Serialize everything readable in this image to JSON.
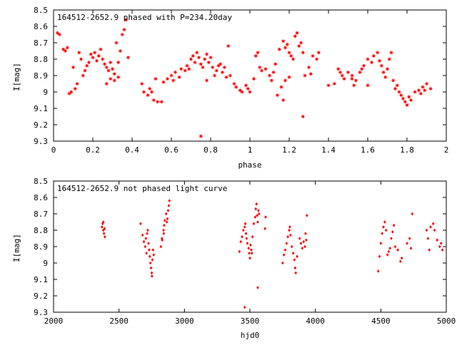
{
  "chart_data": [
    {
      "type": "scatter",
      "title": "164512-2652.9 phased with P=234.20day",
      "xlabel": "phase",
      "ylabel": "I[mag]",
      "xlim": [
        0,
        2
      ],
      "ylim": [
        8.5,
        9.3
      ],
      "y_inverted": true,
      "x_ticks": [
        "0",
        "0.2",
        "0.4",
        "0.6",
        "0.8",
        "1",
        "1.2",
        "1.4",
        "1.6",
        "1.8",
        "2"
      ],
      "y_ticks": [
        "8.5",
        "8.6",
        "8.7",
        "8.8",
        "8.9",
        "9",
        "9.1",
        "9.2",
        "9.3"
      ],
      "marker": "star",
      "color": "#ff0000",
      "points": [
        [
          0.02,
          8.64
        ],
        [
          0.03,
          8.65
        ],
        [
          0.05,
          8.74
        ],
        [
          0.06,
          8.75
        ],
        [
          0.07,
          8.73
        ],
        [
          0.08,
          9.01
        ],
        [
          0.09,
          9.0
        ],
        [
          0.1,
          8.85
        ],
        [
          0.11,
          8.98
        ],
        [
          0.12,
          8.95
        ],
        [
          0.13,
          8.76
        ],
        [
          0.14,
          8.8
        ],
        [
          0.15,
          8.9
        ],
        [
          0.16,
          8.87
        ],
        [
          0.17,
          8.84
        ],
        [
          0.18,
          8.82
        ],
        [
          0.19,
          8.77
        ],
        [
          0.2,
          8.79
        ],
        [
          0.21,
          8.76
        ],
        [
          0.22,
          8.81
        ],
        [
          0.23,
          8.78
        ],
        [
          0.24,
          8.74
        ],
        [
          0.25,
          8.8
        ],
        [
          0.26,
          8.83
        ],
        [
          0.27,
          8.85
        ],
        [
          0.28,
          8.87
        ],
        [
          0.29,
          8.82
        ],
        [
          0.3,
          8.86
        ],
        [
          0.31,
          8.89
        ],
        [
          0.32,
          8.7
        ],
        [
          0.33,
          8.82
        ],
        [
          0.34,
          8.75
        ],
        [
          0.35,
          8.65
        ],
        [
          0.36,
          8.62
        ],
        [
          0.37,
          8.56
        ],
        [
          0.38,
          8.79
        ],
        [
          0.29,
          8.92
        ],
        [
          0.31,
          8.93
        ],
        [
          0.27,
          8.95
        ],
        [
          0.33,
          8.91
        ],
        [
          0.45,
          8.95
        ],
        [
          0.46,
          9.0
        ],
        [
          0.48,
          9.02
        ],
        [
          0.49,
          8.98
        ],
        [
          0.5,
          9.0
        ],
        [
          0.51,
          9.05
        ],
        [
          0.52,
          8.92
        ],
        [
          0.53,
          9.06
        ],
        [
          0.55,
          9.06
        ],
        [
          0.56,
          8.94
        ],
        [
          0.58,
          8.92
        ],
        [
          0.6,
          8.9
        ],
        [
          0.61,
          8.93
        ],
        [
          0.62,
          8.88
        ],
        [
          0.64,
          8.91
        ],
        [
          0.65,
          8.86
        ],
        [
          0.67,
          8.87
        ],
        [
          0.68,
          8.84
        ],
        [
          0.69,
          8.86
        ],
        [
          0.7,
          8.8
        ],
        [
          0.71,
          8.78
        ],
        [
          0.72,
          8.82
        ],
        [
          0.73,
          8.76
        ],
        [
          0.74,
          8.79
        ],
        [
          0.75,
          8.83
        ],
        [
          0.76,
          8.85
        ],
        [
          0.77,
          8.8
        ],
        [
          0.78,
          8.77
        ],
        [
          0.79,
          8.82
        ],
        [
          0.8,
          8.79
        ],
        [
          0.81,
          8.85
        ],
        [
          0.82,
          8.9
        ],
        [
          0.83,
          8.87
        ],
        [
          0.84,
          8.84
        ],
        [
          0.85,
          8.83
        ],
        [
          0.86,
          8.88
        ],
        [
          0.87,
          8.85
        ],
        [
          0.88,
          8.91
        ],
        [
          0.89,
          8.72
        ],
        [
          0.9,
          8.9
        ],
        [
          0.75,
          9.27
        ],
        [
          0.78,
          8.93
        ],
        [
          0.92,
          8.95
        ],
        [
          0.93,
          8.97
        ],
        [
          0.95,
          8.99
        ],
        [
          0.96,
          9.0
        ],
        [
          0.98,
          8.96
        ],
        [
          0.99,
          8.98
        ],
        [
          1.0,
          9.0
        ],
        [
          1.02,
          8.92
        ],
        [
          1.03,
          8.78
        ],
        [
          1.04,
          8.76
        ],
        [
          1.05,
          8.85
        ],
        [
          1.06,
          8.87
        ],
        [
          1.08,
          8.86
        ],
        [
          1.1,
          8.9
        ],
        [
          1.11,
          8.93
        ],
        [
          1.12,
          8.88
        ],
        [
          1.13,
          8.83
        ],
        [
          1.15,
          8.74
        ],
        [
          1.16,
          8.97
        ],
        [
          1.17,
          8.69
        ],
        [
          1.18,
          8.73
        ],
        [
          1.19,
          8.71
        ],
        [
          1.2,
          8.76
        ],
        [
          1.21,
          8.78
        ],
        [
          1.22,
          8.8
        ],
        [
          1.23,
          8.66
        ],
        [
          1.24,
          8.64
        ],
        [
          1.25,
          8.72
        ],
        [
          1.26,
          8.7
        ],
        [
          1.27,
          8.76
        ],
        [
          1.28,
          8.9
        ],
        [
          1.3,
          8.85
        ],
        [
          1.31,
          8.89
        ],
        [
          1.32,
          8.78
        ],
        [
          1.34,
          8.8
        ],
        [
          1.35,
          8.76
        ],
        [
          1.17,
          9.05
        ],
        [
          1.27,
          9.15
        ],
        [
          1.14,
          9.02
        ],
        [
          1.18,
          8.93
        ],
        [
          1.2,
          8.91
        ],
        [
          1.4,
          8.96
        ],
        [
          1.43,
          8.95
        ],
        [
          1.45,
          8.86
        ],
        [
          1.46,
          8.88
        ],
        [
          1.47,
          8.9
        ],
        [
          1.48,
          8.92
        ],
        [
          1.5,
          8.88
        ],
        [
          1.52,
          8.9
        ],
        [
          1.53,
          8.96
        ],
        [
          1.54,
          8.93
        ],
        [
          1.56,
          8.88
        ],
        [
          1.57,
          8.86
        ],
        [
          1.58,
          8.84
        ],
        [
          1.6,
          8.8
        ],
        [
          1.62,
          8.82
        ],
        [
          1.63,
          8.78
        ],
        [
          1.65,
          8.76
        ],
        [
          1.66,
          8.81
        ],
        [
          1.67,
          8.84
        ],
        [
          1.68,
          8.88
        ],
        [
          1.69,
          8.91
        ],
        [
          1.7,
          8.86
        ],
        [
          1.71,
          8.8
        ],
        [
          1.72,
          8.76
        ],
        [
          1.73,
          8.93
        ],
        [
          1.74,
          8.98
        ],
        [
          1.75,
          8.96
        ],
        [
          1.76,
          9.0
        ],
        [
          1.77,
          9.02
        ],
        [
          1.78,
          9.04
        ],
        [
          1.79,
          9.06
        ],
        [
          1.8,
          9.08
        ],
        [
          1.81,
          9.03
        ],
        [
          1.82,
          9.05
        ],
        [
          1.84,
          9.0
        ],
        [
          1.86,
          8.99
        ],
        [
          1.87,
          9.01
        ],
        [
          1.88,
          8.97
        ],
        [
          1.89,
          8.99
        ],
        [
          1.9,
          8.95
        ],
        [
          1.92,
          8.98
        ],
        [
          1.6,
          8.96
        ],
        [
          1.52,
          8.92
        ]
      ]
    },
    {
      "type": "scatter",
      "title": "164512-2652.9 not phased light curve",
      "xlabel": "hjd0",
      "ylabel": "I[mag]",
      "xlim": [
        2000,
        5000
      ],
      "ylim": [
        8.5,
        9.3
      ],
      "y_inverted": true,
      "x_ticks": [
        "2000",
        "2500",
        "3000",
        "3500",
        "4000",
        "4500",
        "5000"
      ],
      "y_ticks": [
        "8.5",
        "8.6",
        "8.7",
        "8.8",
        "8.9",
        "9",
        "9.1",
        "9.2",
        "9.3"
      ],
      "marker": "diamond",
      "color": "#ff0000",
      "points": [
        [
          2370,
          8.78
        ],
        [
          2375,
          8.76
        ],
        [
          2380,
          8.8
        ],
        [
          2385,
          8.82
        ],
        [
          2390,
          8.79
        ],
        [
          2392,
          8.84
        ],
        [
          2380,
          8.75
        ],
        [
          2665,
          8.76
        ],
        [
          2680,
          8.83
        ],
        [
          2690,
          8.87
        ],
        [
          2700,
          8.9
        ],
        [
          2705,
          8.85
        ],
        [
          2710,
          8.94
        ],
        [
          2715,
          8.82
        ],
        [
          2720,
          8.8
        ],
        [
          2725,
          8.88
        ],
        [
          2730,
          8.92
        ],
        [
          2735,
          8.96
        ],
        [
          2740,
          9.0
        ],
        [
          2745,
          9.03
        ],
        [
          2750,
          9.06
        ],
        [
          2752,
          9.08
        ],
        [
          2755,
          8.98
        ],
        [
          2760,
          8.92
        ],
        [
          2765,
          8.95
        ],
        [
          2820,
          8.9
        ],
        [
          2830,
          8.86
        ],
        [
          2840,
          8.8
        ],
        [
          2845,
          8.77
        ],
        [
          2850,
          8.74
        ],
        [
          2860,
          8.7
        ],
        [
          2865,
          8.75
        ],
        [
          2870,
          8.73
        ],
        [
          2875,
          8.68
        ],
        [
          2880,
          8.65
        ],
        [
          2885,
          8.62
        ],
        [
          2828,
          8.85
        ],
        [
          2842,
          8.82
        ],
        [
          3420,
          8.93
        ],
        [
          3430,
          8.87
        ],
        [
          3440,
          8.84
        ],
        [
          3450,
          8.8
        ],
        [
          3460,
          8.78
        ],
        [
          3465,
          8.76
        ],
        [
          3470,
          8.82
        ],
        [
          3475,
          8.85
        ],
        [
          3480,
          8.88
        ],
        [
          3490,
          8.91
        ],
        [
          3495,
          8.94
        ],
        [
          3500,
          8.97
        ],
        [
          3505,
          8.89
        ],
        [
          3510,
          8.92
        ],
        [
          3515,
          8.94
        ],
        [
          3520,
          8.84
        ],
        [
          3530,
          8.76
        ],
        [
          3540,
          8.72
        ],
        [
          3545,
          8.67
        ],
        [
          3550,
          8.64
        ],
        [
          3555,
          8.71
        ],
        [
          3560,
          8.75
        ],
        [
          3565,
          8.68
        ],
        [
          3570,
          8.7
        ],
        [
          3460,
          9.27
        ],
        [
          3560,
          9.15
        ],
        [
          3615,
          8.79
        ],
        [
          3620,
          8.72
        ],
        [
          3750,
          9.0
        ],
        [
          3760,
          8.95
        ],
        [
          3770,
          8.92
        ],
        [
          3780,
          8.88
        ],
        [
          3790,
          8.84
        ],
        [
          3800,
          8.8
        ],
        [
          3805,
          8.78
        ],
        [
          3810,
          8.83
        ],
        [
          3820,
          8.9
        ],
        [
          3830,
          8.94
        ],
        [
          3840,
          8.98
        ],
        [
          3845,
          9.03
        ],
        [
          3850,
          9.06
        ],
        [
          3860,
          8.96
        ],
        [
          3880,
          8.85
        ],
        [
          3890,
          8.88
        ],
        [
          3900,
          8.91
        ],
        [
          3910,
          8.87
        ],
        [
          3920,
          8.9
        ],
        [
          3925,
          8.82
        ],
        [
          3930,
          8.86
        ],
        [
          3935,
          8.71
        ],
        [
          4480,
          9.05
        ],
        [
          4490,
          8.96
        ],
        [
          4500,
          8.88
        ],
        [
          4510,
          8.82
        ],
        [
          4520,
          8.78
        ],
        [
          4530,
          8.75
        ],
        [
          4540,
          8.8
        ],
        [
          4550,
          8.95
        ],
        [
          4560,
          8.93
        ],
        [
          4570,
          8.91
        ],
        [
          4580,
          8.85
        ],
        [
          4590,
          8.81
        ],
        [
          4600,
          8.77
        ],
        [
          4610,
          8.9
        ],
        [
          4630,
          8.92
        ],
        [
          4650,
          8.99
        ],
        [
          4660,
          8.97
        ],
        [
          4700,
          8.88
        ],
        [
          4720,
          8.85
        ],
        [
          4730,
          8.91
        ],
        [
          4740,
          8.7
        ],
        [
          4850,
          8.8
        ],
        [
          4860,
          8.85
        ],
        [
          4870,
          8.92
        ],
        [
          4880,
          8.78
        ],
        [
          4900,
          8.76
        ],
        [
          4910,
          8.8
        ],
        [
          4930,
          8.86
        ],
        [
          4950,
          8.9
        ],
        [
          4960,
          8.88
        ],
        [
          4970,
          8.92
        ]
      ]
    }
  ]
}
